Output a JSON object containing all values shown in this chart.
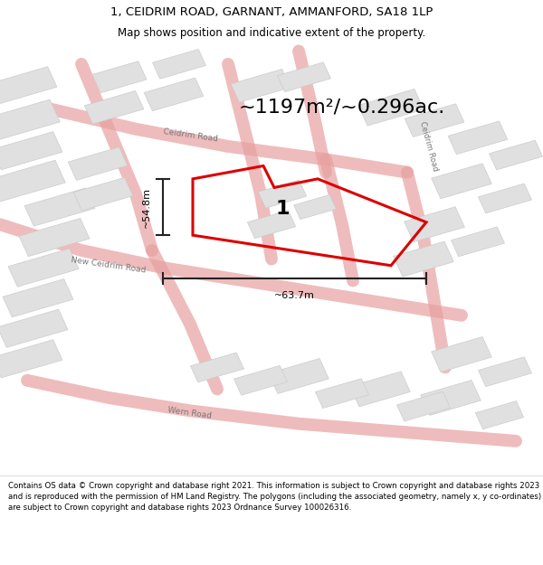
{
  "title": "1, CEIDRIM ROAD, GARNANT, AMMANFORD, SA18 1LP",
  "subtitle": "Map shows position and indicative extent of the property.",
  "copyright": "Contains OS data © Crown copyright and database right 2021. This information is subject to Crown copyright and database rights 2023 and is reproduced with the permission of HM Land Registry. The polygons (including the associated geometry, namely x, y co-ordinates) are subject to Crown copyright and database rights 2023 Ordnance Survey 100026316.",
  "area_text": "~1197m²/~0.296ac.",
  "dim_v": "~54.8m",
  "dim_h": "~63.7m",
  "plot_label": "1",
  "map_bg": "#f2f0f0",
  "road_color": "#e8a0a0",
  "block_color": "#e0e0e0",
  "block_edge": "#cccccc",
  "red_poly_color": "#dd0000",
  "title_fontsize": 9.5,
  "subtitle_fontsize": 8.5,
  "copyright_fontsize": 6.2,
  "area_fontsize": 16,
  "road_label_fontsize": 6.5,
  "plot_label_fontsize": 16,
  "dim_fontsize": 8
}
